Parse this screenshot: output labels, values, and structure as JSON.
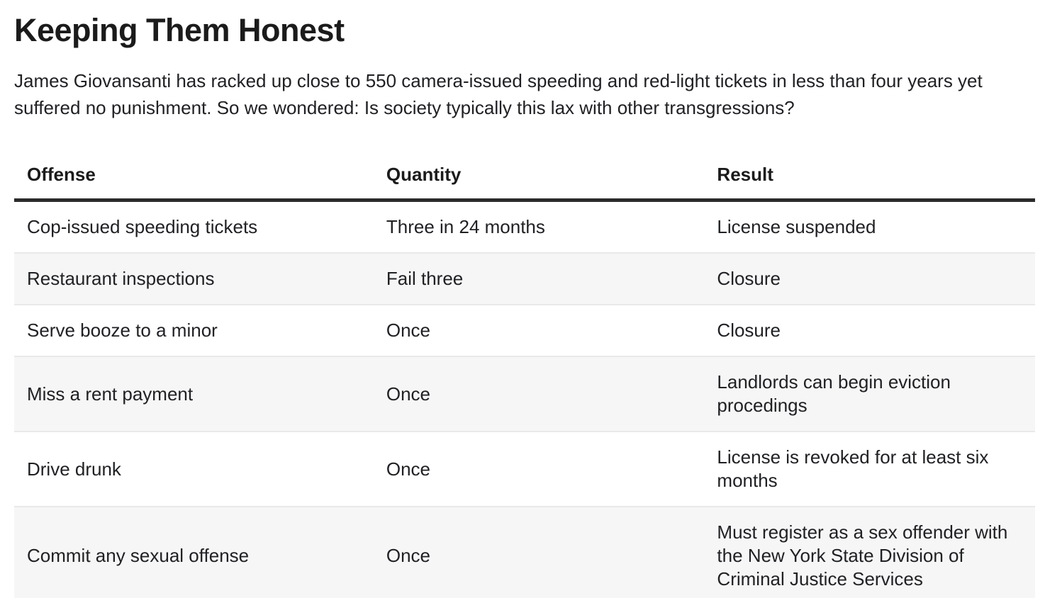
{
  "page": {
    "title": "Keeping Them Honest",
    "intro": "James Giovansanti has racked up close to 550 camera-issued speeding and red-light tickets in less than four years yet suffered no punishment. So we wondered: Is society typically this lax with other transgressions?"
  },
  "table": {
    "columns": [
      "Offense",
      "Quantity",
      "Result"
    ],
    "rows": [
      {
        "offense": "Cop-issued speeding tickets",
        "quantity": "Three in 24 months",
        "result": "License suspended"
      },
      {
        "offense": "Restaurant inspections",
        "quantity": "Fail three",
        "result": "Closure"
      },
      {
        "offense": "Serve booze to a minor",
        "quantity": "Once",
        "result": "Closure"
      },
      {
        "offense": "Miss a rent payment",
        "quantity": "Once",
        "result": "Landlords can begin eviction procedings"
      },
      {
        "offense": "Drive drunk",
        "quantity": "Once",
        "result": "License is revoked for at least six months"
      },
      {
        "offense": "Commit any sexual offense",
        "quantity": "Once",
        "result": "Must register as a sex offender with the New York State Division of Criminal Justice Services"
      }
    ]
  },
  "colors": {
    "text": "#202124",
    "header_border": "#2b2b2b",
    "row_stripe": "#f6f6f6",
    "row_divider": "#e9e9e9"
  }
}
